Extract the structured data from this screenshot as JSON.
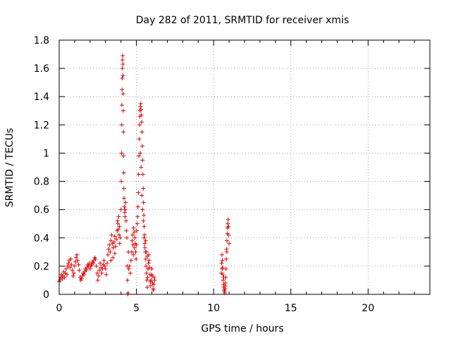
{
  "chart_data": {
    "type": "scatter",
    "title": "Day 282 of 2011, SRMTID for receiver xmis",
    "xlabel": "GPS time / hours",
    "ylabel": "SRMTID / TECUs",
    "xlim": [
      0,
      24
    ],
    "ylim": [
      0,
      1.8
    ],
    "xticks": [
      0,
      5,
      10,
      15,
      20
    ],
    "xtick_labels": [
      "0",
      "5",
      "10",
      "15",
      "20"
    ],
    "yticks": [
      0,
      0.2,
      0.4,
      0.6,
      0.8,
      1.0,
      1.2,
      1.4,
      1.6,
      1.8
    ],
    "ytick_labels": [
      "0",
      "0.2",
      "0.4",
      "0.6",
      "0.8",
      "1",
      "1.2",
      "1.4",
      "1.6",
      "1.8"
    ],
    "grid": true,
    "marker": "+",
    "series": [
      {
        "name": "SRMTID",
        "color": "#e00000",
        "points": [
          [
            0.0,
            0.09
          ],
          [
            0.05,
            0.1
          ],
          [
            0.1,
            0.12
          ],
          [
            0.15,
            0.14
          ],
          [
            0.2,
            0.11
          ],
          [
            0.25,
            0.13
          ],
          [
            0.3,
            0.16
          ],
          [
            0.35,
            0.12
          ],
          [
            0.4,
            0.15
          ],
          [
            0.45,
            0.18
          ],
          [
            0.5,
            0.14
          ],
          [
            0.55,
            0.2
          ],
          [
            0.6,
            0.22
          ],
          [
            0.65,
            0.24
          ],
          [
            0.7,
            0.19
          ],
          [
            0.75,
            0.25
          ],
          [
            0.8,
            0.21
          ],
          [
            0.85,
            0.17
          ],
          [
            0.9,
            0.13
          ],
          [
            0.95,
            0.15
          ],
          [
            1.0,
            0.2
          ],
          [
            1.05,
            0.23
          ],
          [
            1.1,
            0.26
          ],
          [
            1.15,
            0.28
          ],
          [
            1.2,
            0.24
          ],
          [
            1.25,
            0.21
          ],
          [
            1.3,
            0.17
          ],
          [
            1.35,
            0.12
          ],
          [
            1.4,
            0.1
          ],
          [
            1.45,
            0.11
          ],
          [
            1.5,
            0.13
          ],
          [
            1.55,
            0.15
          ],
          [
            1.6,
            0.14
          ],
          [
            1.65,
            0.16
          ],
          [
            1.7,
            0.18
          ],
          [
            1.75,
            0.17
          ],
          [
            1.8,
            0.19
          ],
          [
            1.85,
            0.21
          ],
          [
            1.9,
            0.2
          ],
          [
            1.95,
            0.22
          ],
          [
            2.0,
            0.18
          ],
          [
            2.05,
            0.2
          ],
          [
            2.1,
            0.21
          ],
          [
            2.15,
            0.23
          ],
          [
            2.2,
            0.22
          ],
          [
            2.25,
            0.24
          ],
          [
            2.3,
            0.26
          ],
          [
            2.35,
            0.25
          ],
          [
            2.4,
            0.2
          ],
          [
            2.45,
            0.15
          ],
          [
            2.5,
            0.1
          ],
          [
            2.55,
            0.13
          ],
          [
            2.6,
            0.17
          ],
          [
            2.65,
            0.22
          ],
          [
            2.7,
            0.19
          ],
          [
            2.75,
            0.15
          ],
          [
            2.8,
            0.18
          ],
          [
            2.85,
            0.21
          ],
          [
            2.9,
            0.24
          ],
          [
            2.95,
            0.2
          ],
          [
            3.0,
            0.18
          ],
          [
            3.05,
            0.14
          ],
          [
            3.1,
            0.22
          ],
          [
            3.15,
            0.28
          ],
          [
            3.2,
            0.32
          ],
          [
            3.25,
            0.35
          ],
          [
            3.3,
            0.3
          ],
          [
            3.35,
            0.38
          ],
          [
            3.4,
            0.42
          ],
          [
            3.45,
            0.36
          ],
          [
            3.5,
            0.33
          ],
          [
            3.55,
            0.37
          ],
          [
            3.6,
            0.41
          ],
          [
            3.65,
            0.34
          ],
          [
            3.7,
            0.39
          ],
          [
            3.75,
            0.45
          ],
          [
            3.8,
            0.5
          ],
          [
            3.85,
            0.55
          ],
          [
            3.9,
            0.48
          ],
          [
            3.95,
            0.4
          ],
          [
            3.78,
            0.52
          ],
          [
            3.82,
            0.46
          ],
          [
            3.88,
            0.42
          ],
          [
            3.92,
            0.36
          ],
          [
            3.6,
            0.29
          ],
          [
            3.48,
            0.26
          ],
          [
            3.35,
            0.24
          ],
          [
            4.0,
            0.6
          ],
          [
            4.02,
            0.8
          ],
          [
            4.04,
            1.0
          ],
          [
            4.05,
            1.2
          ],
          [
            4.06,
            1.34
          ],
          [
            4.07,
            1.45
          ],
          [
            4.08,
            1.53
          ],
          [
            4.09,
            1.6
          ],
          [
            4.1,
            1.66
          ],
          [
            4.11,
            1.69
          ],
          [
            4.12,
            1.63
          ],
          [
            4.13,
            1.55
          ],
          [
            4.14,
            1.42
          ],
          [
            4.15,
            1.3
          ],
          [
            4.16,
            1.15
          ],
          [
            4.17,
            0.98
          ],
          [
            4.18,
            0.86
          ],
          [
            4.19,
            0.75
          ],
          [
            4.2,
            0.68
          ],
          [
            4.22,
            0.62
          ],
          [
            4.24,
            0.58
          ],
          [
            4.26,
            0.55
          ],
          [
            4.28,
            0.6
          ],
          [
            4.3,
            0.65
          ],
          [
            4.33,
            0.52
          ],
          [
            4.35,
            0.45
          ],
          [
            4.38,
            0.4
          ],
          [
            4.4,
            0.2
          ],
          [
            4.42,
            0.1
          ],
          [
            4.44,
            0.0
          ],
          [
            4.46,
            0.01
          ],
          [
            4.48,
            0.3
          ],
          [
            4.5,
            0.18
          ],
          [
            4.55,
            0.2
          ],
          [
            4.6,
            0.15
          ],
          [
            4.65,
            0.24
          ],
          [
            4.7,
            0.3
          ],
          [
            4.72,
            0.38
          ],
          [
            4.75,
            0.42
          ],
          [
            4.78,
            0.35
          ],
          [
            4.8,
            0.28
          ],
          [
            4.82,
            0.47
          ],
          [
            4.85,
            0.44
          ],
          [
            4.88,
            0.33
          ],
          [
            4.9,
            0.4
          ],
          [
            4.92,
            0.36
          ],
          [
            4.95,
            0.3
          ],
          [
            4.98,
            0.25
          ],
          [
            5.0,
            0.35
          ],
          [
            5.02,
            0.45
          ],
          [
            5.05,
            0.5
          ],
          [
            5.08,
            0.55
          ],
          [
            5.1,
            0.62
          ],
          [
            5.12,
            0.72
          ],
          [
            5.14,
            0.85
          ],
          [
            5.16,
            0.98
          ],
          [
            5.18,
            1.1
          ],
          [
            5.2,
            1.2
          ],
          [
            5.22,
            1.26
          ],
          [
            5.24,
            1.3
          ],
          [
            5.26,
            1.33
          ],
          [
            5.28,
            1.35
          ],
          [
            5.3,
            1.31
          ],
          [
            5.32,
            1.27
          ],
          [
            5.34,
            1.22
          ],
          [
            5.36,
            1.15
          ],
          [
            5.38,
            1.05
          ],
          [
            5.4,
            0.95
          ],
          [
            5.42,
            0.85
          ],
          [
            5.44,
            0.75
          ],
          [
            5.46,
            0.65
          ],
          [
            5.48,
            0.56
          ],
          [
            5.5,
            0.48
          ],
          [
            5.52,
            0.42
          ],
          [
            5.55,
            0.36
          ],
          [
            5.58,
            0.3
          ],
          [
            5.6,
            0.25
          ],
          [
            5.62,
            0.2
          ],
          [
            5.65,
            0.15
          ],
          [
            5.68,
            0.1
          ],
          [
            5.7,
            0.05
          ],
          [
            5.72,
            0.12
          ],
          [
            5.75,
            0.18
          ],
          [
            5.78,
            0.22
          ],
          [
            5.8,
            0.28
          ],
          [
            5.82,
            0.24
          ],
          [
            5.85,
            0.19
          ],
          [
            5.88,
            0.14
          ],
          [
            5.9,
            0.09
          ],
          [
            5.92,
            0.06
          ],
          [
            5.95,
            0.1
          ],
          [
            5.98,
            0.14
          ],
          [
            6.0,
            0.18
          ],
          [
            6.02,
            0.13
          ],
          [
            6.05,
            0.08
          ],
          [
            6.08,
            0.04
          ],
          [
            6.1,
            0.03
          ],
          [
            6.12,
            0.07
          ],
          [
            6.15,
            0.12
          ],
          [
            6.18,
            0.1
          ],
          [
            5.25,
            1.0
          ],
          [
            5.3,
            0.9
          ],
          [
            5.35,
            0.7
          ],
          [
            5.4,
            0.6
          ],
          [
            5.45,
            0.52
          ],
          [
            5.5,
            0.4
          ],
          [
            5.55,
            0.33
          ],
          [
            5.6,
            0.38
          ],
          [
            5.65,
            0.3
          ],
          [
            5.7,
            0.27
          ],
          [
            10.5,
            0.15
          ],
          [
            10.52,
            0.22
          ],
          [
            10.54,
            0.28
          ],
          [
            10.56,
            0.24
          ],
          [
            10.58,
            0.19
          ],
          [
            10.6,
            0.14
          ],
          [
            10.62,
            0.1
          ],
          [
            10.64,
            0.07
          ],
          [
            10.66,
            0.05
          ],
          [
            10.68,
            0.03
          ],
          [
            10.7,
            0.02
          ],
          [
            10.72,
            0.01
          ],
          [
            10.74,
            0.04
          ],
          [
            10.76,
            0.08
          ],
          [
            10.78,
            0.12
          ],
          [
            10.8,
            0.18
          ],
          [
            10.82,
            0.25
          ],
          [
            10.84,
            0.32
          ],
          [
            10.86,
            0.38
          ],
          [
            10.88,
            0.43
          ],
          [
            10.9,
            0.47
          ],
          [
            10.92,
            0.5
          ],
          [
            10.94,
            0.53
          ],
          [
            10.96,
            0.48
          ],
          [
            10.98,
            0.42
          ],
          [
            11.0,
            0.36
          ],
          [
            10.55,
            0.18
          ],
          [
            10.65,
            0.12
          ],
          [
            10.75,
            0.06
          ],
          [
            10.85,
            0.3
          ]
        ]
      }
    ]
  }
}
